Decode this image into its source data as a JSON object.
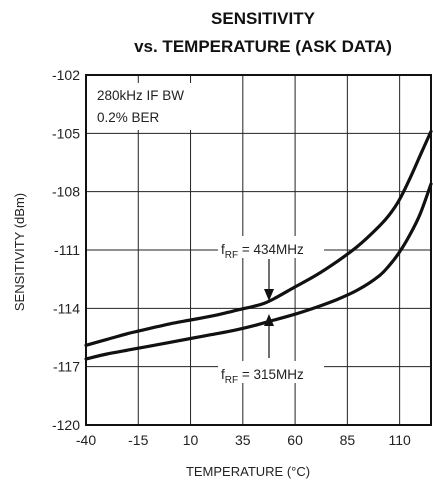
{
  "chart_data": {
    "type": "line",
    "title": "SENSITIVITY",
    "subtitle": "vs. TEMPERATURE (ASK DATA)",
    "xlabel": "TEMPERATURE (°C)",
    "ylabel": "SENSITIVITY (dBm)",
    "xlim": [
      -40,
      125
    ],
    "ylim": [
      -120,
      -102
    ],
    "x_ticks": [
      -40,
      -15,
      10,
      35,
      60,
      85,
      110
    ],
    "y_ticks": [
      -102,
      -105,
      -108,
      -111,
      -114,
      -117,
      -120
    ],
    "x_tick_labels": [
      "-40",
      "-15",
      "10",
      "35",
      "60",
      "85",
      "110"
    ],
    "y_tick_labels": [
      "-102",
      "-105",
      "-108",
      "-111",
      "-114",
      "-117",
      "-120"
    ],
    "grid": true,
    "annotations": {
      "conditions_line1": "280kHz IF BW",
      "conditions_line2": "0.2% BER",
      "f_prefix": "f",
      "f_sub": "RF",
      "label_434": " = 434MHz",
      "label_315": " = 315MHz"
    },
    "series": [
      {
        "name": "fRF = 434MHz",
        "x": [
          -40,
          -30,
          -20,
          -10,
          0,
          10,
          20,
          30,
          40,
          45,
          50,
          60,
          70,
          80,
          90,
          100,
          105,
          110,
          115,
          120,
          125
        ],
        "y": [
          -115.9,
          -115.6,
          -115.3,
          -115.05,
          -114.8,
          -114.6,
          -114.4,
          -114.15,
          -113.9,
          -113.75,
          -113.5,
          -112.9,
          -112.3,
          -111.6,
          -110.8,
          -109.8,
          -109.2,
          -108.4,
          -107.3,
          -106.1,
          -104.9
        ]
      },
      {
        "name": "fRF = 315MHz",
        "x": [
          -40,
          -30,
          -20,
          -10,
          0,
          10,
          20,
          30,
          40,
          50,
          60,
          70,
          80,
          90,
          100,
          105,
          110,
          115,
          120,
          125
        ],
        "y": [
          -116.6,
          -116.35,
          -116.15,
          -115.95,
          -115.75,
          -115.55,
          -115.35,
          -115.15,
          -114.9,
          -114.6,
          -114.3,
          -113.95,
          -113.55,
          -113.05,
          -112.35,
          -111.8,
          -111.1,
          -110.2,
          -109.1,
          -107.6
        ]
      }
    ]
  }
}
